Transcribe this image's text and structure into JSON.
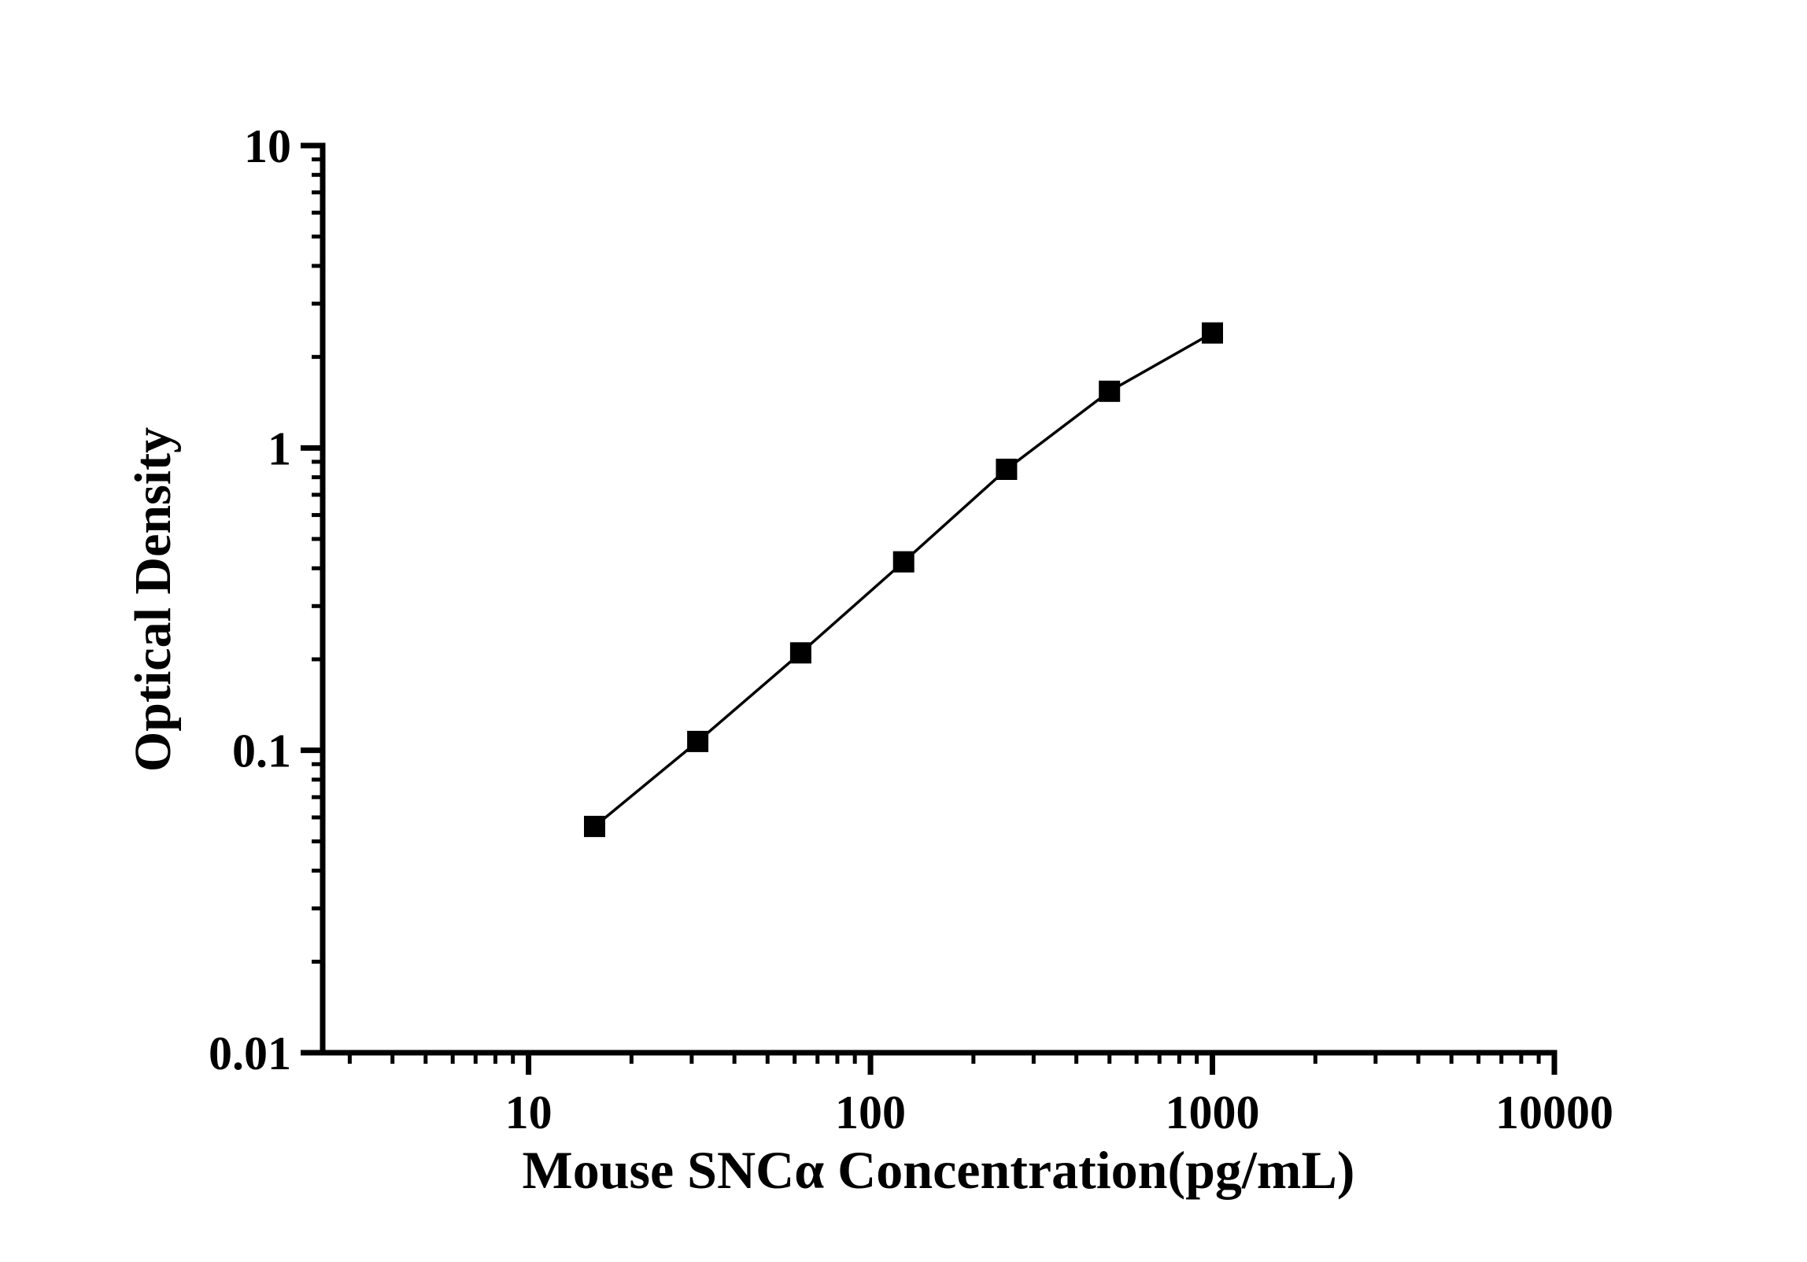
{
  "figure": {
    "background_color": "#ffffff",
    "axis_color": "#000000",
    "line_color": "#000000",
    "marker_color": "#000000",
    "marker_shape": "filled-square"
  },
  "chart_data": {
    "type": "line",
    "title": "",
    "xlabel": "Mouse SNCα Concentration(pg/mL)",
    "ylabel": "Optical Density",
    "x_scale": "log",
    "y_scale": "log",
    "xlim": [
      2.5,
      10000
    ],
    "ylim": [
      0.01,
      10
    ],
    "x_tick_values": [
      10,
      100,
      1000,
      10000
    ],
    "x_tick_labels": [
      "10",
      "100",
      "1000",
      "10000"
    ],
    "y_tick_values": [
      0.01,
      0.1,
      1,
      10
    ],
    "y_tick_labels": [
      "0.01",
      "0.1",
      "1",
      "10"
    ],
    "grid": false,
    "legend_position": "none",
    "series": [
      {
        "x": [
          15.6,
          31.25,
          62.5,
          125,
          250,
          500,
          1000
        ],
        "y": [
          0.056,
          0.107,
          0.21,
          0.42,
          0.85,
          1.54,
          2.4
        ]
      }
    ]
  }
}
